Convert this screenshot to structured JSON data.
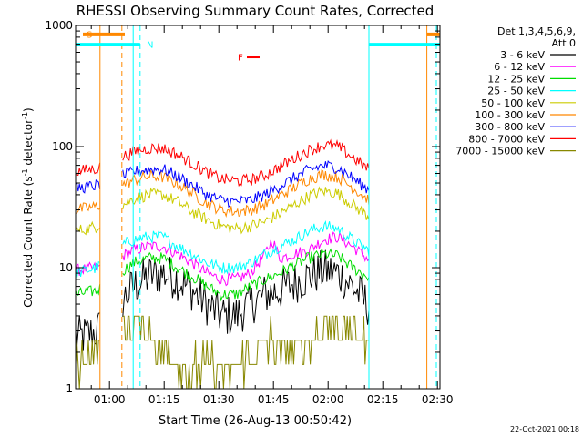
{
  "chart_data": {
    "type": "line",
    "title": "RHESSI Observing Summary Count Rates, Corrected",
    "xlabel": "Start Time (26-Aug-13 00:50:42)",
    "ylabel_main": "Corrected Count Rate (s",
    "ylabel_sup1": "-1",
    "ylabel_mid": " detector",
    "ylabel_sup2": "-1",
    "ylabel_end": ")",
    "x_unit": "minutes since 00:50:42",
    "xlim": [
      0,
      100
    ],
    "ylim": [
      1,
      1000
    ],
    "yscale": "log",
    "x_ticks": [
      {
        "t": 9.3,
        "label": "01:00"
      },
      {
        "t": 24.3,
        "label": "01:15"
      },
      {
        "t": 39.3,
        "label": "01:30"
      },
      {
        "t": 54.3,
        "label": "01:45"
      },
      {
        "t": 69.3,
        "label": "02:00"
      },
      {
        "t": 84.3,
        "label": "02:15"
      },
      {
        "t": 99.3,
        "label": "02:30"
      }
    ],
    "y_ticks": [
      {
        "v": 1,
        "label": "1"
      },
      {
        "v": 10,
        "label": "10"
      },
      {
        "v": 100,
        "label": "100"
      },
      {
        "v": 1000,
        "label": "1000"
      }
    ],
    "legend": {
      "header1": "Det 1,3,4,5,6,9,",
      "header2": "Att 0",
      "placement": "right"
    },
    "series": [
      {
        "name": "3 - 6 keV",
        "color": "#000000",
        "points": [
          [
            0,
            2.6
          ],
          [
            6,
            3.0
          ],
          [
            12,
            5.0
          ],
          [
            16,
            7.0
          ],
          [
            20,
            8.5
          ],
          [
            24,
            9.0
          ],
          [
            28,
            8.0
          ],
          [
            32,
            6.5
          ],
          [
            36,
            5.0
          ],
          [
            40,
            4.0
          ],
          [
            44,
            4.0
          ],
          [
            48,
            5.0
          ],
          [
            52,
            6.0
          ],
          [
            56,
            6.5
          ],
          [
            60,
            7.5
          ],
          [
            64,
            8.5
          ],
          [
            68,
            9.5
          ],
          [
            72,
            9.0
          ],
          [
            76,
            7.0
          ],
          [
            80,
            5.0
          ],
          [
            84,
            3.5
          ],
          [
            88,
            2.8
          ],
          [
            92,
            2.5
          ],
          [
            95,
            2.8
          ],
          [
            97,
            13
          ]
        ]
      },
      {
        "name": "6 - 12 keV",
        "color": "#ff00ff",
        "points": [
          [
            0,
            9.5
          ],
          [
            6,
            10
          ],
          [
            12,
            12
          ],
          [
            16,
            14
          ],
          [
            20,
            15
          ],
          [
            24,
            15
          ],
          [
            28,
            13
          ],
          [
            32,
            11
          ],
          [
            36,
            9.0
          ],
          [
            40,
            8.0
          ],
          [
            44,
            8.0
          ],
          [
            48,
            9.0
          ],
          [
            52,
            13
          ],
          [
            54,
            17
          ],
          [
            56,
            12
          ],
          [
            60,
            13
          ],
          [
            64,
            14
          ],
          [
            68,
            17
          ],
          [
            72,
            18
          ],
          [
            76,
            15
          ],
          [
            80,
            12
          ],
          [
            84,
            10
          ],
          [
            88,
            8.5
          ],
          [
            92,
            8.0
          ],
          [
            95,
            9
          ],
          [
            97,
            14
          ]
        ]
      },
      {
        "name": "12 - 25 keV",
        "color": "#00dd00",
        "points": [
          [
            0,
            6.0
          ],
          [
            6,
            6.5
          ],
          [
            12,
            9.0
          ],
          [
            16,
            11
          ],
          [
            20,
            12
          ],
          [
            24,
            12
          ],
          [
            28,
            10
          ],
          [
            32,
            8.5
          ],
          [
            36,
            7.0
          ],
          [
            40,
            6.0
          ],
          [
            44,
            6.0
          ],
          [
            48,
            7.0
          ],
          [
            52,
            8.0
          ],
          [
            56,
            9.0
          ],
          [
            60,
            10.5
          ],
          [
            64,
            12
          ],
          [
            68,
            13
          ],
          [
            72,
            12.5
          ],
          [
            76,
            10
          ],
          [
            80,
            8.5
          ],
          [
            84,
            7.0
          ],
          [
            88,
            6.0
          ],
          [
            92,
            5.5
          ],
          [
            95,
            6
          ],
          [
            97,
            12
          ]
        ]
      },
      {
        "name": "25 - 50 keV",
        "color": "#00ffff",
        "points": [
          [
            0,
            9.0
          ],
          [
            6,
            10
          ],
          [
            12,
            15
          ],
          [
            16,
            17
          ],
          [
            20,
            18
          ],
          [
            24,
            18
          ],
          [
            28,
            15
          ],
          [
            32,
            13
          ],
          [
            36,
            11
          ],
          [
            40,
            10
          ],
          [
            44,
            10
          ],
          [
            48,
            11
          ],
          [
            52,
            13
          ],
          [
            56,
            15
          ],
          [
            60,
            17
          ],
          [
            64,
            20
          ],
          [
            68,
            22
          ],
          [
            72,
            21
          ],
          [
            76,
            17
          ],
          [
            80,
            14
          ],
          [
            84,
            12
          ],
          [
            88,
            11
          ],
          [
            92,
            11
          ],
          [
            95,
            12
          ],
          [
            97,
            18
          ]
        ]
      },
      {
        "name": "50 - 100 keV",
        "color": "#cccc00",
        "points": [
          [
            0,
            20
          ],
          [
            6,
            22
          ],
          [
            12,
            32
          ],
          [
            16,
            37
          ],
          [
            20,
            40
          ],
          [
            24,
            40
          ],
          [
            28,
            35
          ],
          [
            32,
            29
          ],
          [
            36,
            25
          ],
          [
            40,
            22
          ],
          [
            44,
            21
          ],
          [
            48,
            22
          ],
          [
            52,
            24
          ],
          [
            56,
            28
          ],
          [
            60,
            33
          ],
          [
            64,
            39
          ],
          [
            68,
            43
          ],
          [
            72,
            41
          ],
          [
            76,
            33
          ],
          [
            80,
            27
          ],
          [
            84,
            23
          ],
          [
            88,
            21
          ],
          [
            92,
            20
          ],
          [
            95,
            21
          ],
          [
            97,
            30
          ]
        ]
      },
      {
        "name": "100 - 300 keV",
        "color": "#ff8800",
        "points": [
          [
            0,
            30
          ],
          [
            6,
            32
          ],
          [
            12,
            47
          ],
          [
            16,
            53
          ],
          [
            20,
            57
          ],
          [
            24,
            56
          ],
          [
            28,
            49
          ],
          [
            32,
            41
          ],
          [
            36,
            34
          ],
          [
            40,
            30
          ],
          [
            44,
            29
          ],
          [
            48,
            30
          ],
          [
            52,
            33
          ],
          [
            56,
            39
          ],
          [
            60,
            46
          ],
          [
            64,
            54
          ],
          [
            68,
            59
          ],
          [
            72,
            56
          ],
          [
            76,
            46
          ],
          [
            80,
            37
          ],
          [
            84,
            32
          ],
          [
            88,
            29
          ],
          [
            92,
            28
          ],
          [
            95,
            30
          ],
          [
            97,
            45
          ]
        ]
      },
      {
        "name": "300 - 800 keV",
        "color": "#0000ff",
        "points": [
          [
            0,
            45
          ],
          [
            6,
            48
          ],
          [
            12,
            56
          ],
          [
            16,
            62
          ],
          [
            20,
            65
          ],
          [
            24,
            65
          ],
          [
            28,
            57
          ],
          [
            32,
            48
          ],
          [
            36,
            40
          ],
          [
            40,
            36
          ],
          [
            44,
            35
          ],
          [
            48,
            36
          ],
          [
            52,
            40
          ],
          [
            56,
            47
          ],
          [
            60,
            55
          ],
          [
            64,
            64
          ],
          [
            68,
            70
          ],
          [
            72,
            67
          ],
          [
            76,
            55
          ],
          [
            80,
            45
          ],
          [
            84,
            39
          ],
          [
            88,
            36
          ],
          [
            92,
            35
          ],
          [
            95,
            38
          ],
          [
            97,
            60
          ]
        ]
      },
      {
        "name": "800 - 7000 keV",
        "color": "#ff0000",
        "points": [
          [
            0,
            62
          ],
          [
            6,
            66
          ],
          [
            12,
            80
          ],
          [
            16,
            90
          ],
          [
            20,
            97
          ],
          [
            24,
            97
          ],
          [
            28,
            86
          ],
          [
            32,
            73
          ],
          [
            36,
            61
          ],
          [
            40,
            54
          ],
          [
            44,
            52
          ],
          [
            48,
            53
          ],
          [
            52,
            58
          ],
          [
            56,
            68
          ],
          [
            60,
            80
          ],
          [
            64,
            93
          ],
          [
            68,
            103
          ],
          [
            72,
            100
          ],
          [
            76,
            82
          ],
          [
            80,
            66
          ],
          [
            84,
            58
          ],
          [
            88,
            53
          ],
          [
            92,
            52
          ],
          [
            95,
            56
          ],
          [
            97,
            95
          ]
        ]
      },
      {
        "name": "7000 - 15000 keV",
        "color": "#888800",
        "points": [
          [
            0,
            1.5
          ],
          [
            4,
            1.8
          ],
          [
            8,
            2.0
          ],
          [
            12,
            3.2
          ],
          [
            16,
            3.6
          ],
          [
            20,
            3.0
          ],
          [
            24,
            2.2
          ],
          [
            28,
            1.6
          ],
          [
            32,
            1.4
          ],
          [
            36,
            1.6
          ],
          [
            40,
            1.4
          ],
          [
            44,
            1.5
          ],
          [
            48,
            1.8
          ],
          [
            52,
            2.5
          ],
          [
            56,
            2.2
          ],
          [
            60,
            2.0
          ],
          [
            64,
            2.4
          ],
          [
            68,
            3.2
          ],
          [
            72,
            3.4
          ],
          [
            76,
            3.0
          ],
          [
            80,
            2.2
          ],
          [
            84,
            1.6
          ],
          [
            88,
            1.4
          ],
          [
            92,
            1.3
          ],
          [
            95,
            1.5
          ],
          [
            97,
            2.4
          ]
        ]
      }
    ],
    "gaps": [
      [
        6.7,
        12.7
      ],
      [
        80.5,
        97.0
      ]
    ],
    "flag_lines": [
      {
        "t": 6.7,
        "color": "#ff8800",
        "style": "solid"
      },
      {
        "t": 12.7,
        "color": "#ff8800",
        "style": "dashed"
      },
      {
        "t": 15.8,
        "color": "#00ffff",
        "style": "solid"
      },
      {
        "t": 17.7,
        "color": "#00ffff",
        "style": "dashed"
      },
      {
        "t": 80.5,
        "color": "#00ffff",
        "style": "solid"
      },
      {
        "t": 96.4,
        "color": "#ff8800",
        "style": "solid"
      },
      {
        "t": 99.0,
        "color": "#00ffff",
        "style": "dashed"
      }
    ],
    "flag_bars": [
      {
        "label": "S",
        "color": "#ff8800",
        "start": 2.0,
        "end": 13.5,
        "level": 850,
        "label_t": 3.0
      },
      {
        "label": "N",
        "color": "#00ffff",
        "start": 0.0,
        "end": 17.7,
        "level": 700,
        "label_t": 19.5
      },
      {
        "label": "F",
        "color": "#ff0000",
        "start": 47.0,
        "end": 50.5,
        "level": 550,
        "label_t": 44.5
      },
      {
        "label": "",
        "color": "#ff8800",
        "start": 96.4,
        "end": 100,
        "level": 850,
        "label_t": 0
      },
      {
        "label": "",
        "color": "#00ffff",
        "start": 80.5,
        "end": 100,
        "level": 700,
        "label_t": 0
      }
    ]
  },
  "footer": {
    "timestamp": "22-Oct-2021 00:18"
  }
}
